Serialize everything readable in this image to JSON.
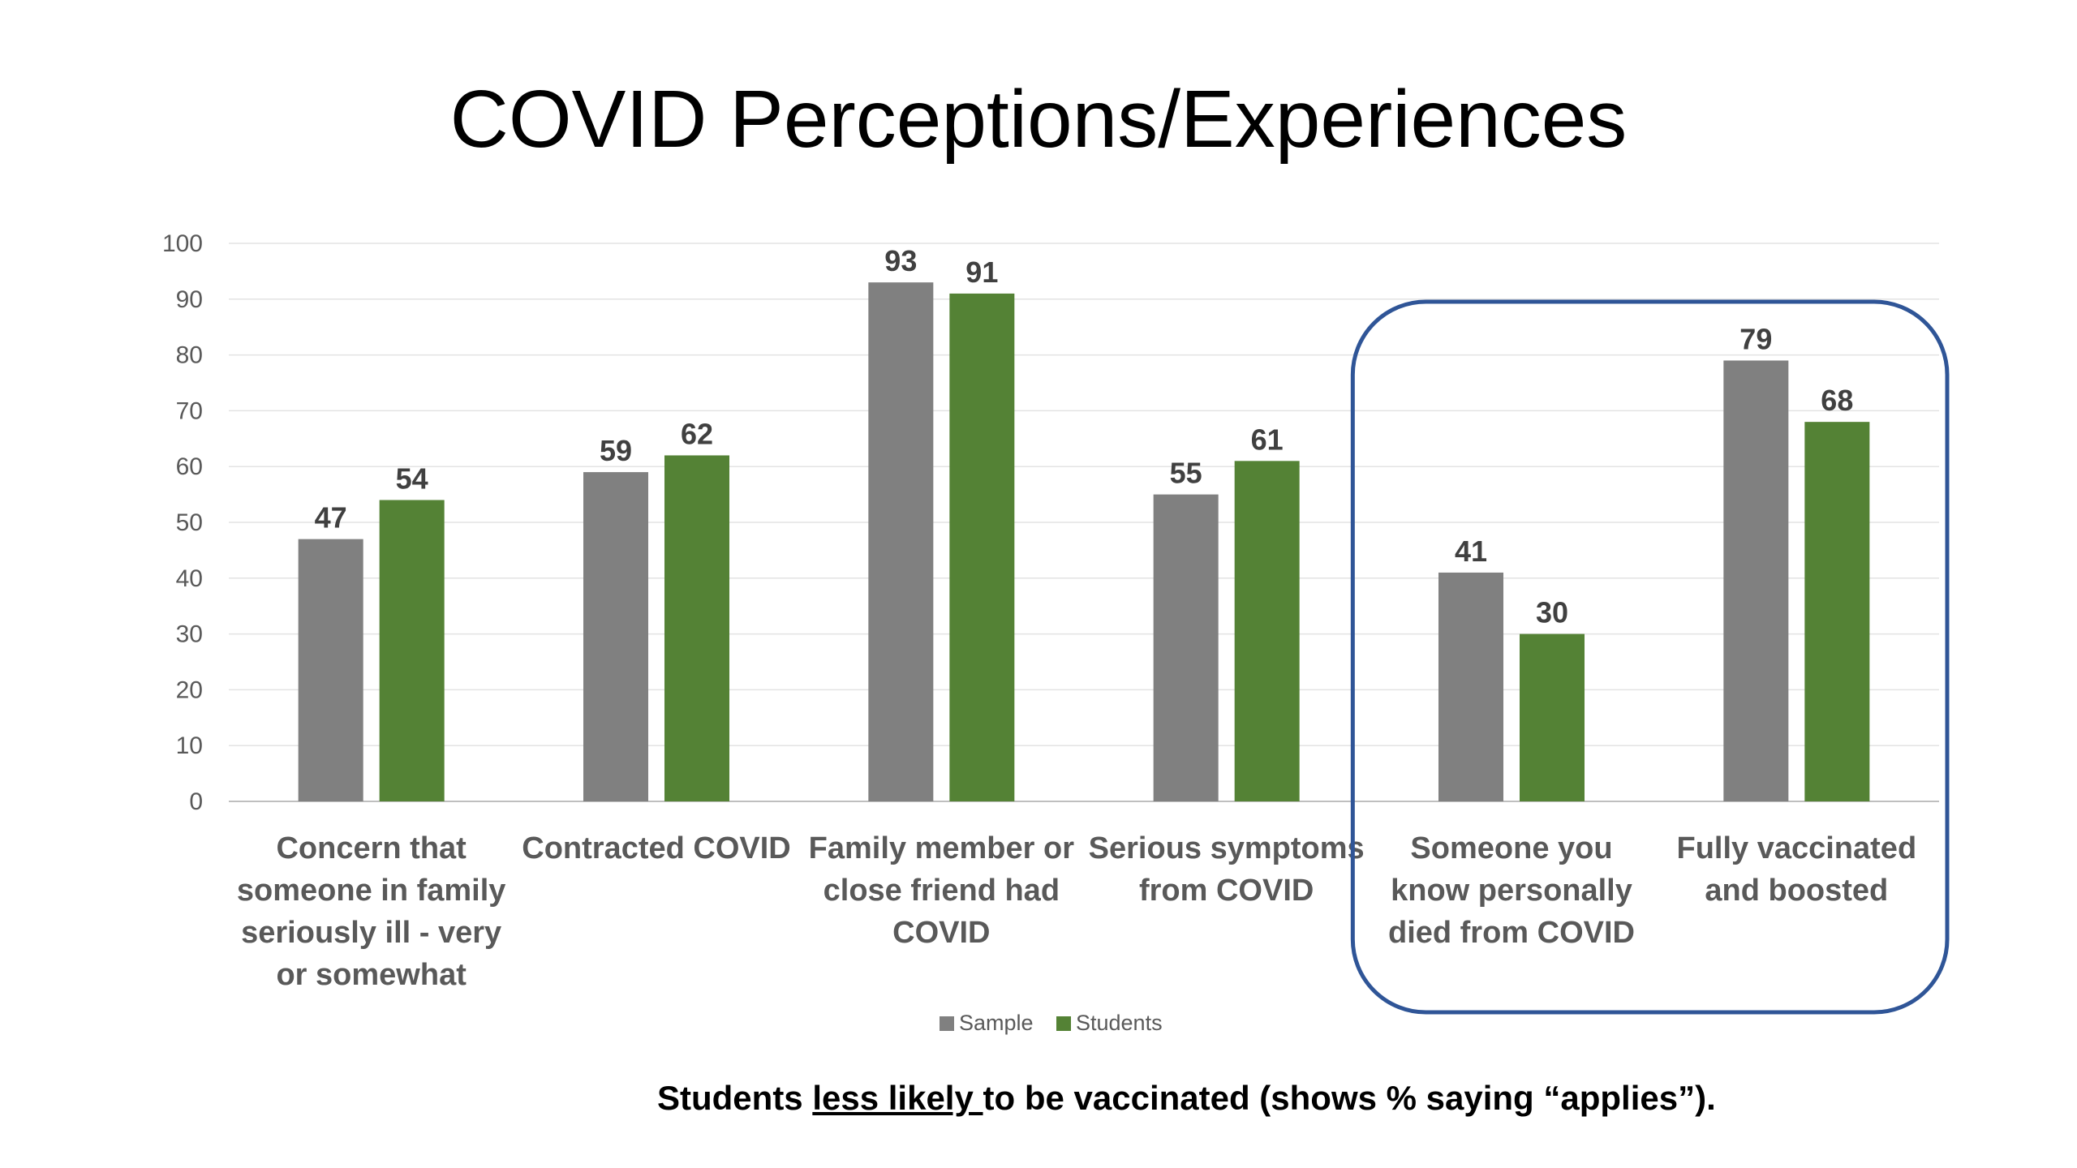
{
  "slide": {
    "title": "COVID Perceptions/Experiences",
    "caption": {
      "before": "Students ",
      "underlined": "less likely ",
      "after": "to be vaccinated (shows % saying “applies”)."
    }
  },
  "chart_data": {
    "type": "bar",
    "categories": [
      [
        "Concern that",
        "someone in family",
        "seriously ill - very",
        "or somewhat"
      ],
      [
        "Contracted COVID"
      ],
      [
        "Family member or",
        "close friend had",
        "COVID"
      ],
      [
        "Serious symptoms",
        "from COVID"
      ],
      [
        "Someone you",
        "know personally",
        "died from COVID"
      ],
      [
        "Fully vaccinated",
        "and boosted"
      ]
    ],
    "series": [
      {
        "name": "Sample",
        "color": "#808080",
        "values": [
          47,
          59,
          93,
          55,
          41,
          79
        ]
      },
      {
        "name": "Students",
        "color": "#548235",
        "values": [
          54,
          62,
          91,
          61,
          30,
          68
        ]
      }
    ],
    "ylim": [
      0,
      100
    ],
    "yticks": [
      0,
      10,
      20,
      30,
      40,
      50,
      60,
      70,
      80,
      90,
      100
    ],
    "grid": true,
    "data_labels": true,
    "legend": "bottom-center",
    "highlight": {
      "categories": [
        4,
        5
      ],
      "color": "#2F5597",
      "shape": "rounded-rectangle"
    }
  }
}
